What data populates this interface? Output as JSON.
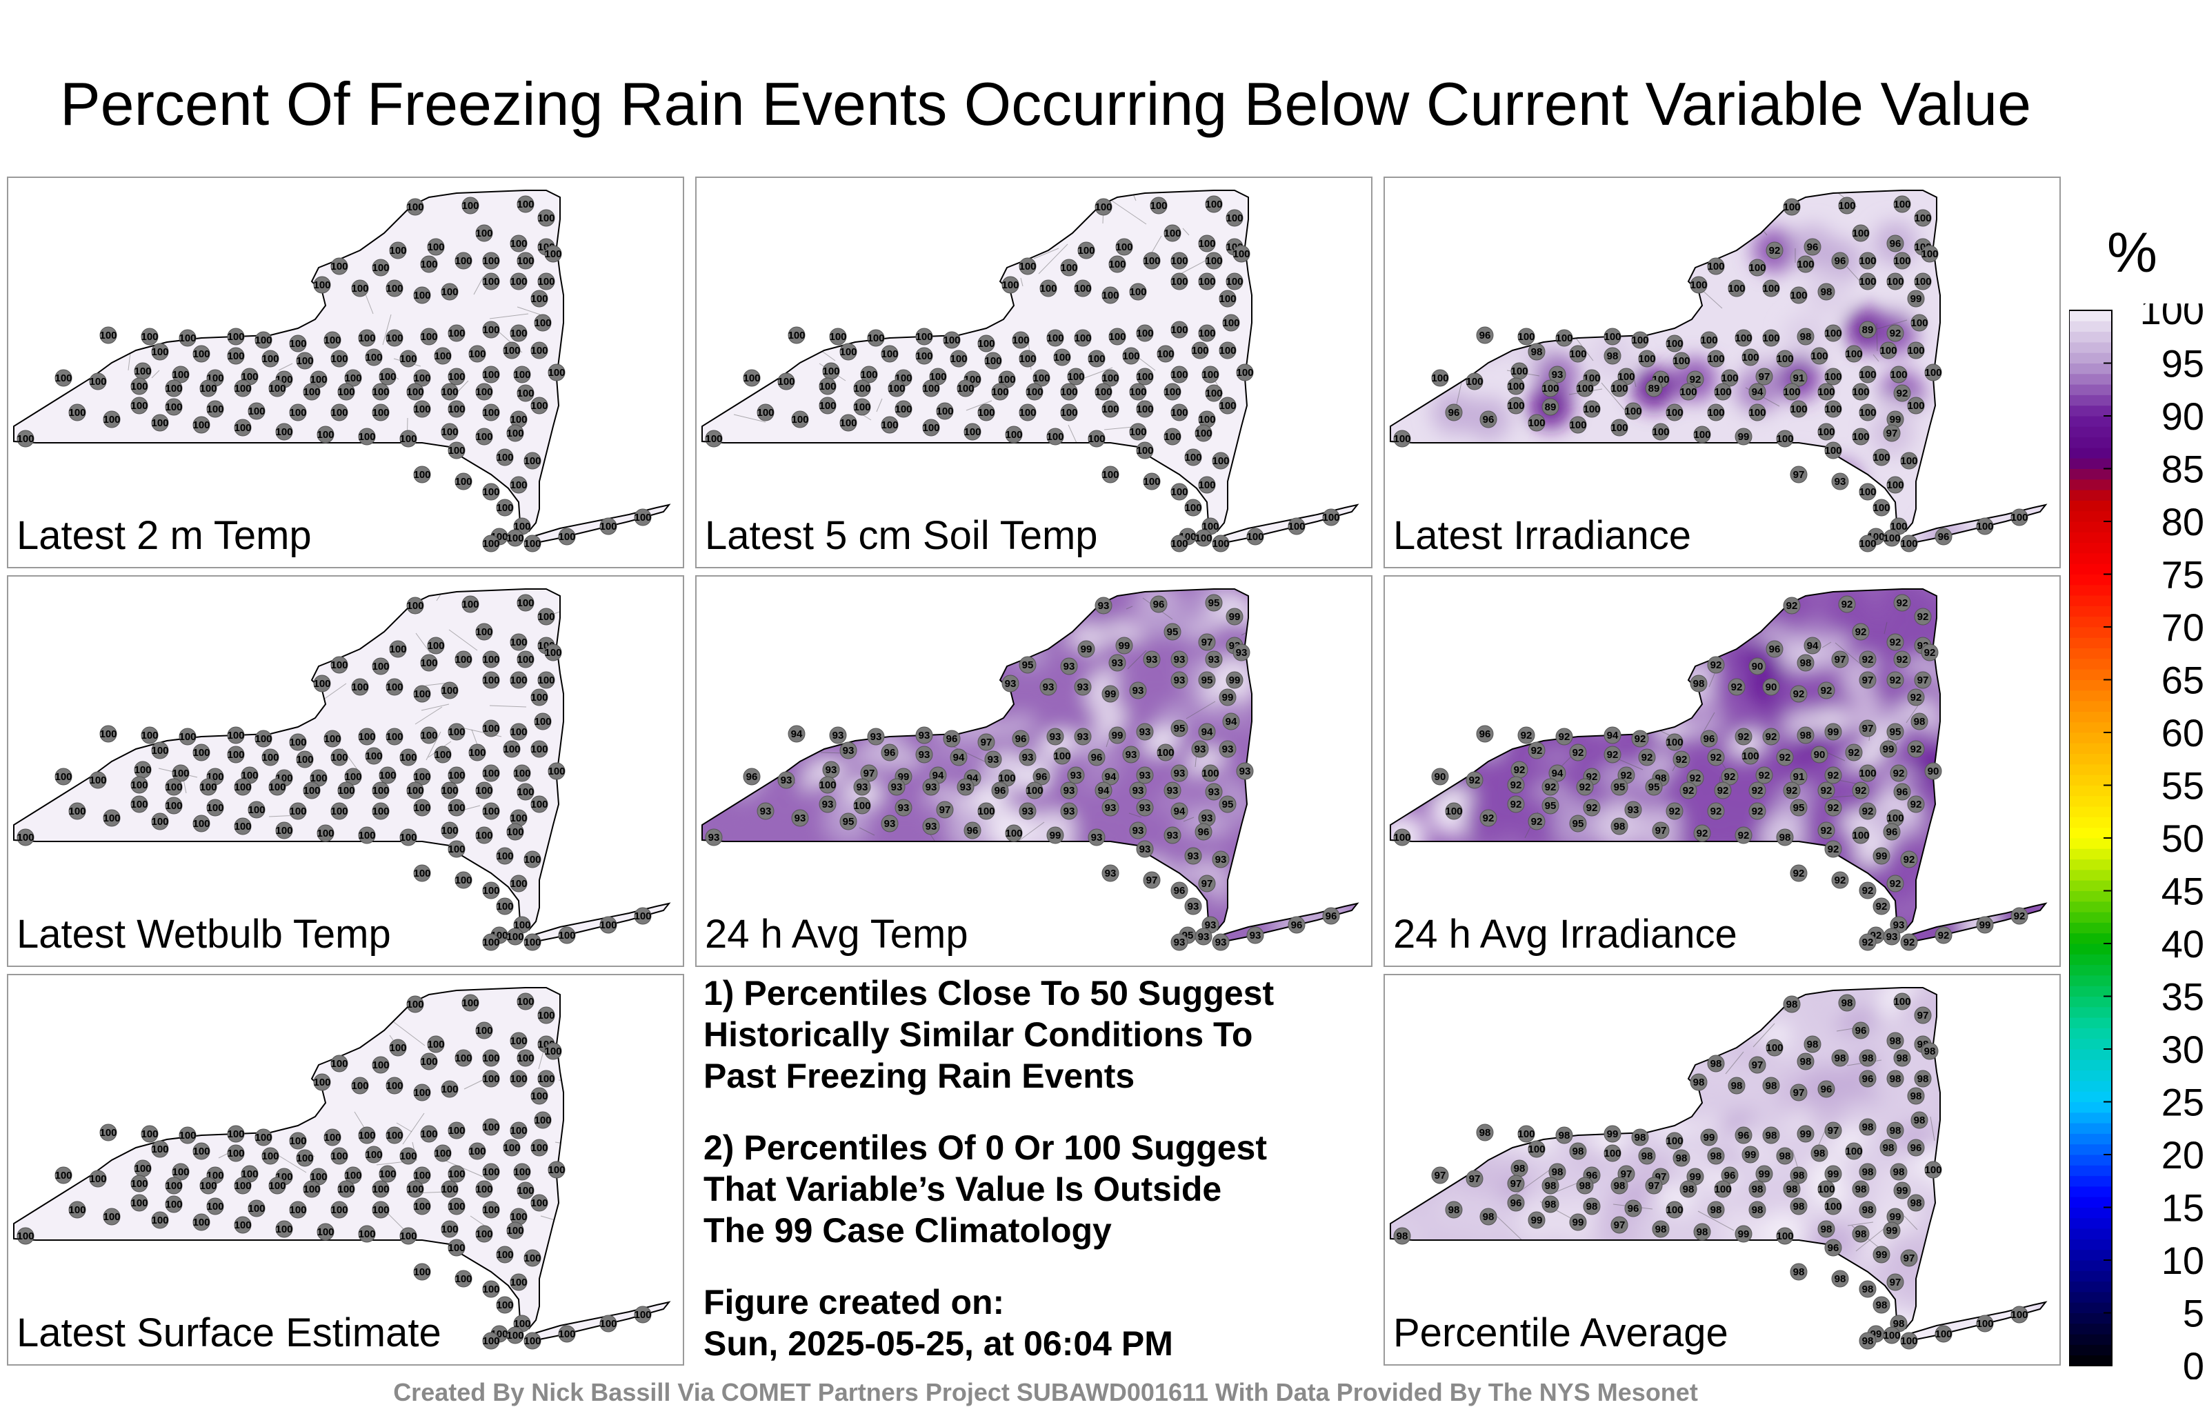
{
  "title": "Percent Of Freezing Rain Events Occurring Below Current Variable Value",
  "panels": [
    {
      "label": "Latest 2 m Temp",
      "shading": "none",
      "dominant": "100",
      "variants": []
    },
    {
      "label": "Latest 5 cm Soil Temp",
      "shading": "none",
      "dominant": "100",
      "variants": []
    },
    {
      "label": "Latest Irradiance",
      "shading": "patchy",
      "dominant": "100",
      "variants": [
        "86",
        "89",
        "93",
        "92",
        "94",
        "96",
        "97",
        "98",
        "91",
        "99"
      ]
    },
    {
      "label": "Latest Wetbulb Temp",
      "shading": "none",
      "dominant": "100",
      "variants": []
    },
    {
      "label": "24 h Avg Temp",
      "shading": "strong",
      "dominant": "93",
      "variants": [
        "94",
        "96",
        "95",
        "99",
        "100",
        "97"
      ]
    },
    {
      "label": "24 h Avg Irradiance",
      "shading": "strong",
      "dominant": "92",
      "variants": [
        "93",
        "94",
        "95",
        "90",
        "91",
        "100",
        "98",
        "99",
        "97",
        "96"
      ]
    },
    {
      "label": "Latest Surface Estimate",
      "shading": "none",
      "dominant": "100",
      "variants": []
    },
    {
      "label": "Percentile Average",
      "shading": "moderate",
      "dominant": "98",
      "variants": [
        "97",
        "99",
        "96",
        "100"
      ]
    }
  ],
  "notes": {
    "note1": "1) Percentiles Close To 50 Suggest\nHistorically Similar Conditions To\nPast Freezing Rain Events",
    "note2": "2) Percentiles Of 0 Or 100 Suggest\nThat Variable’s Value Is Outside\nThe 99 Case Climatology",
    "created_label": "Figure created on:",
    "created_date": "Sun, 2025-05-25, at 06:04 PM"
  },
  "footer": "Created By Nick Bassill Via COMET Partners Project SUBAWD001611 With Data Provided By The NYS Mesonet",
  "colorbar": {
    "unit": "%",
    "ticks": [
      0,
      5,
      10,
      15,
      20,
      25,
      30,
      35,
      40,
      45,
      50,
      55,
      60,
      65,
      70,
      75,
      80,
      85,
      90,
      95,
      100
    ],
    "stops": [
      {
        "value": 0,
        "color": "#000000"
      },
      {
        "value": 8,
        "color": "#000080"
      },
      {
        "value": 16,
        "color": "#0000ff"
      },
      {
        "value": 25,
        "color": "#00c8ff"
      },
      {
        "value": 32,
        "color": "#00d2a0"
      },
      {
        "value": 40,
        "color": "#00b400"
      },
      {
        "value": 50,
        "color": "#ffff00"
      },
      {
        "value": 62,
        "color": "#ff9600"
      },
      {
        "value": 75,
        "color": "#ff0000"
      },
      {
        "value": 82,
        "color": "#c80000"
      },
      {
        "value": 86,
        "color": "#5a0080"
      },
      {
        "value": 90,
        "color": "#6a1a9a"
      },
      {
        "value": 95,
        "color": "#b89cd0"
      },
      {
        "value": 100,
        "color": "#f4f0f8"
      }
    ]
  },
  "chart_data": {
    "type": "heatmap",
    "title": "Percent Of Freezing Rain Events Occurring Below Current Variable Value",
    "colorbar_unit": "%",
    "zlim": [
      0,
      100
    ],
    "panels": [
      "Latest 2 m Temp",
      "Latest 5 cm Soil Temp",
      "Latest Irradiance",
      "Latest Wetbulb Temp",
      "24 h Avg Temp",
      "24 h Avg Irradiance",
      "Latest Surface Estimate",
      "Percentile Average"
    ]
  }
}
